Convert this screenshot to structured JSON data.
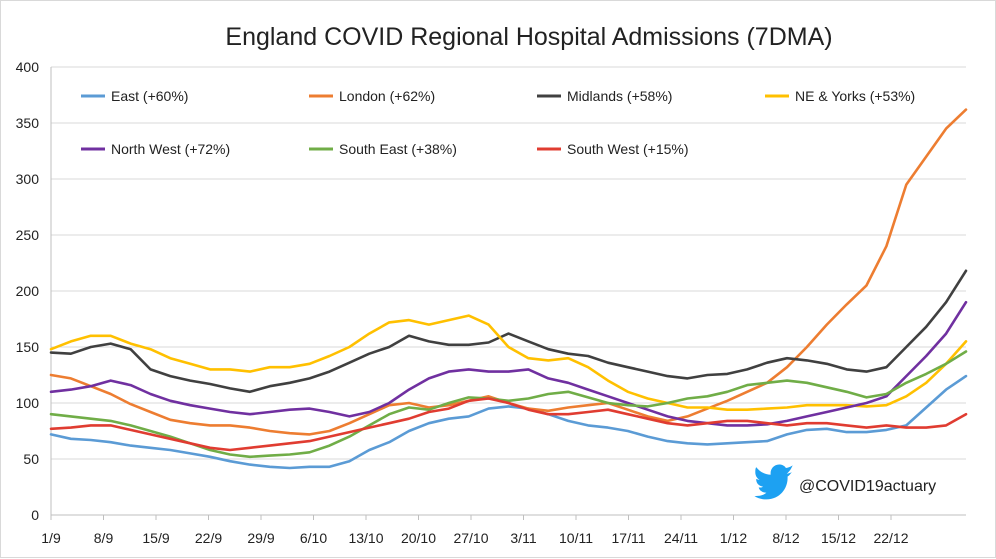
{
  "chart_data": {
    "type": "line",
    "title": "England COVID Regional Hospital Admissions (7DMA)",
    "ylim": [
      0,
      400
    ],
    "yticks": [
      0,
      50,
      100,
      150,
      200,
      250,
      300,
      350,
      400
    ],
    "xticks": [
      "1/9",
      "8/9",
      "15/9",
      "22/9",
      "29/9",
      "6/10",
      "13/10",
      "20/10",
      "27/10",
      "3/11",
      "10/11",
      "17/11",
      "24/11",
      "1/12",
      "8/12",
      "15/12",
      "22/12"
    ],
    "grid": "horizontal",
    "legend_position": "top",
    "x_start_day": "1/9",
    "series": [
      {
        "name": "East (+60%)",
        "color": "#5b9bd5",
        "values": [
          72,
          68,
          67,
          65,
          62,
          60,
          58,
          55,
          52,
          48,
          45,
          43,
          42,
          43,
          43,
          48,
          58,
          65,
          75,
          82,
          86,
          88,
          95,
          97,
          95,
          90,
          84,
          80,
          78,
          75,
          70,
          66,
          64,
          63,
          64,
          65,
          66,
          72,
          76,
          77,
          74,
          74,
          76,
          80,
          96,
          112,
          124
        ]
      },
      {
        "name": "London (+62%)",
        "color": "#ed7d31",
        "values": [
          125,
          122,
          115,
          108,
          99,
          92,
          85,
          82,
          80,
          80,
          78,
          75,
          73,
          72,
          75,
          82,
          90,
          98,
          100,
          96,
          98,
          102,
          106,
          100,
          95,
          93,
          96,
          98,
          100,
          94,
          88,
          84,
          88,
          95,
          102,
          110,
          118,
          132,
          150,
          170,
          188,
          205,
          240,
          295,
          320,
          345,
          362
        ]
      },
      {
        "name": "Midlands (+58%)",
        "color": "#404040",
        "values": [
          145,
          144,
          150,
          153,
          148,
          130,
          124,
          120,
          117,
          113,
          110,
          115,
          118,
          122,
          128,
          136,
          144,
          150,
          160,
          155,
          152,
          152,
          154,
          162,
          155,
          148,
          144,
          142,
          136,
          132,
          128,
          124,
          122,
          125,
          126,
          130,
          136,
          140,
          138,
          135,
          130,
          128,
          132,
          150,
          168,
          190,
          218
        ]
      },
      {
        "name": "NE & Yorks (+53%)",
        "color": "#ffc000",
        "values": [
          148,
          155,
          160,
          160,
          153,
          148,
          140,
          135,
          130,
          130,
          128,
          132,
          132,
          135,
          142,
          150,
          162,
          172,
          174,
          170,
          174,
          178,
          170,
          150,
          140,
          138,
          140,
          132,
          120,
          110,
          104,
          100,
          96,
          96,
          94,
          94,
          95,
          96,
          98,
          98,
          98,
          97,
          98,
          106,
          118,
          135,
          155
        ]
      },
      {
        "name": "North West (+72%)",
        "color": "#7030a0",
        "values": [
          110,
          112,
          115,
          120,
          116,
          108,
          102,
          98,
          95,
          92,
          90,
          92,
          94,
          95,
          92,
          88,
          92,
          100,
          112,
          122,
          128,
          130,
          128,
          128,
          130,
          122,
          118,
          112,
          106,
          100,
          94,
          88,
          84,
          82,
          80,
          80,
          81,
          84,
          88,
          92,
          96,
          100,
          106,
          124,
          142,
          162,
          190
        ]
      },
      {
        "name": "South East (+38%)",
        "color": "#70ad47",
        "values": [
          90,
          88,
          86,
          84,
          80,
          75,
          70,
          64,
          58,
          54,
          52,
          53,
          54,
          56,
          62,
          70,
          80,
          90,
          96,
          94,
          100,
          105,
          104,
          102,
          104,
          108,
          110,
          105,
          100,
          98,
          97,
          100,
          104,
          106,
          110,
          116,
          118,
          120,
          118,
          114,
          110,
          105,
          108,
          118,
          126,
          135,
          146
        ]
      },
      {
        "name": "South West (+15%)",
        "color": "#e03c31",
        "values": [
          77,
          78,
          80,
          80,
          76,
          72,
          68,
          64,
          60,
          58,
          60,
          62,
          64,
          66,
          70,
          74,
          78,
          82,
          86,
          92,
          95,
          102,
          104,
          100,
          94,
          90,
          90,
          92,
          94,
          90,
          86,
          82,
          80,
          82,
          84,
          84,
          82,
          80,
          82,
          82,
          80,
          78,
          80,
          78,
          78,
          80,
          90
        ]
      }
    ]
  },
  "watermark": {
    "icon": "twitter-bird-icon",
    "handle": "@COVID19actuary",
    "color": "#1da1f2"
  }
}
